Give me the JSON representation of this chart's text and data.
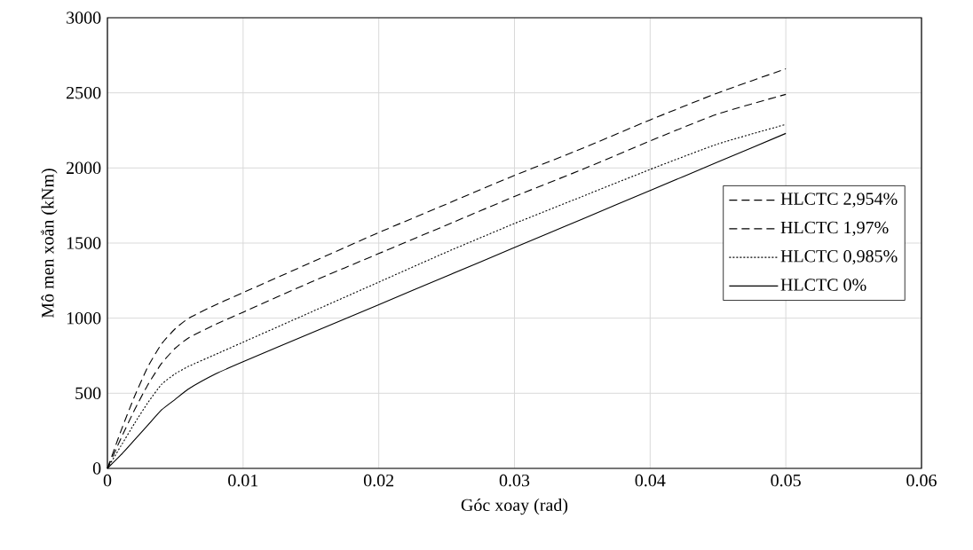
{
  "chart_data": {
    "type": "line",
    "xlabel": "Góc xoay (rad)",
    "ylabel": "Mô men xoắn (kNm)",
    "xlim": [
      0,
      0.06
    ],
    "xticks": [
      0,
      0.01,
      0.02,
      0.03,
      0.04,
      0.05,
      0.06
    ],
    "ylim": [
      0,
      3000
    ],
    "yticks": [
      0,
      500,
      1000,
      1500,
      2000,
      2500,
      3000
    ],
    "grid": true,
    "legend": "right",
    "marker": "none",
    "x": [
      0,
      0.001,
      0.002,
      0.003,
      0.004,
      0.005,
      0.006,
      0.008,
      0.01,
      0.015,
      0.02,
      0.025,
      0.03,
      0.035,
      0.04,
      0.045,
      0.05
    ],
    "series": [
      {
        "name": "HLCTC 2,954%",
        "color": "#000000",
        "line_style": "dashed",
        "values": [
          0,
          250,
          480,
          680,
          830,
          930,
          1000,
          1090,
          1170,
          1370,
          1570,
          1760,
          1950,
          2130,
          2320,
          2500,
          2660
        ]
      },
      {
        "name": "HLCTC 1,97%",
        "color": "#000000",
        "line_style": "dashed",
        "values": [
          0,
          200,
          390,
          560,
          700,
          800,
          870,
          960,
          1040,
          1240,
          1430,
          1620,
          1810,
          1990,
          2180,
          2360,
          2490
        ]
      },
      {
        "name": "HLCTC 0,985%",
        "color": "#000000",
        "line_style": "dotted",
        "values": [
          0,
          150,
          300,
          440,
          560,
          630,
          680,
          760,
          840,
          1040,
          1240,
          1440,
          1630,
          1810,
          1990,
          2160,
          2290
        ]
      },
      {
        "name": "HLCTC 0%",
        "color": "#000000",
        "line_style": "solid",
        "values": [
          0,
          90,
          190,
          290,
          390,
          460,
          530,
          630,
          710,
          900,
          1090,
          1280,
          1470,
          1660,
          1850,
          2040,
          2230
        ]
      }
    ]
  }
}
